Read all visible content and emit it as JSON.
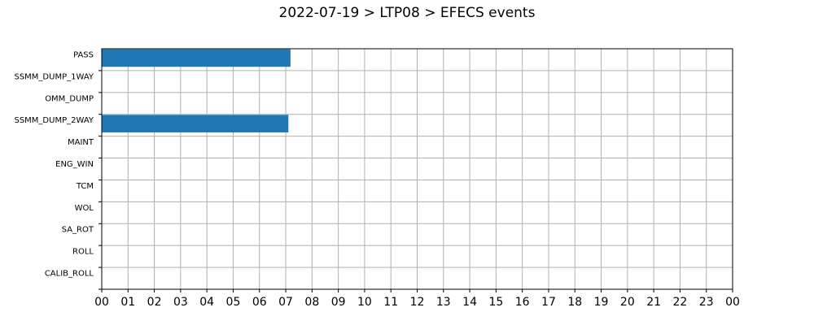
{
  "chart_data": {
    "type": "bar",
    "orientation": "horizontal",
    "title": "2022-07-19 > LTP08 > EFECS events",
    "xlabel": "",
    "ylabel": "",
    "x_unit": "hour of day",
    "xlim": [
      0,
      24
    ],
    "x_tick_labels": [
      "00",
      "01",
      "02",
      "03",
      "04",
      "05",
      "06",
      "07",
      "08",
      "09",
      "10",
      "11",
      "12",
      "13",
      "14",
      "15",
      "16",
      "17",
      "18",
      "19",
      "20",
      "21",
      "22",
      "23",
      "00"
    ],
    "categories": [
      "PASS",
      "SSMM_DUMP_1WAY",
      "OMM_DUMP",
      "SSMM_DUMP_2WAY",
      "MAINT",
      "ENG_WIN",
      "TCM",
      "WOL",
      "SA_ROT",
      "ROLL",
      "CALIB_ROLL"
    ],
    "bars": [
      {
        "category": "PASS",
        "start": 0.0,
        "end": 7.18
      },
      {
        "category": "SSMM_DUMP_2WAY",
        "start": 0.0,
        "end": 7.1
      }
    ],
    "bar_color": "#1f77b4",
    "grid": true,
    "grid_color": "#b0b0b0"
  }
}
